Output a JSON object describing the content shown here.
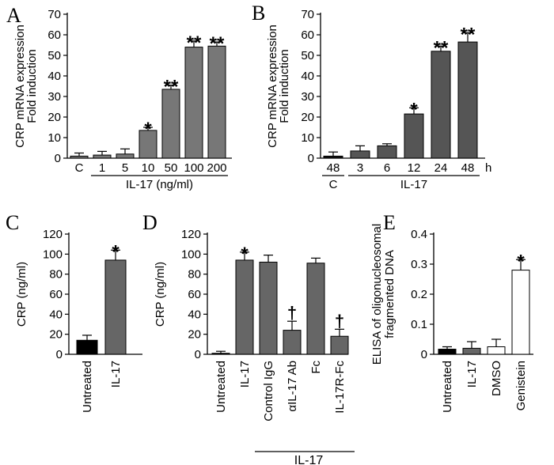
{
  "chart_data": [
    {
      "id": "A",
      "type": "bar",
      "panel_label": "A",
      "ylabel_lines": [
        "CRP mRNA expression",
        "Fold induction"
      ],
      "ylim": [
        0,
        70
      ],
      "yticks": [
        0,
        10,
        20,
        30,
        40,
        50,
        60,
        70
      ],
      "categories": [
        "C",
        "1",
        "5",
        "10",
        "50",
        "100",
        "200"
      ],
      "values": [
        1,
        1.5,
        2,
        13.5,
        33.5,
        54,
        54.5
      ],
      "errors": [
        1.5,
        1.8,
        2.5,
        1.5,
        2,
        3,
        2
      ],
      "colors": [
        "#777777",
        "#777777",
        "#777777",
        "#777777",
        "#777777",
        "#777777",
        "#777777"
      ],
      "marks": [
        "",
        "",
        "",
        "*",
        "**",
        "**",
        "**"
      ],
      "group_label": "IL-17 (ng/ml)",
      "group_span": [
        1,
        6
      ],
      "unit": ""
    },
    {
      "id": "B",
      "type": "bar",
      "panel_label": "B",
      "ylabel_lines": [
        "CRP mRNA expression",
        "Fold induction"
      ],
      "ylim": [
        0,
        70
      ],
      "yticks": [
        0,
        10,
        20,
        30,
        40,
        50,
        60,
        70
      ],
      "categories": [
        "48",
        "3",
        "6",
        "12",
        "24",
        "48"
      ],
      "values": [
        1,
        3.5,
        6,
        21.5,
        52,
        56.5
      ],
      "errors": [
        2,
        2.5,
        1,
        3,
        2.5,
        4.5
      ],
      "colors": [
        "#111111",
        "#555555",
        "#555555",
        "#555555",
        "#555555",
        "#555555"
      ],
      "marks": [
        "",
        "",
        "",
        "*",
        "**",
        "**"
      ],
      "group_label": "IL-17",
      "group_span": [
        1,
        5
      ],
      "first_sublabel": "C",
      "unit": "h"
    },
    {
      "id": "C",
      "type": "bar",
      "panel_label": "C",
      "ylabel_lines": [
        "CRP (ng/ml)"
      ],
      "ylim": [
        0,
        120
      ],
      "yticks": [
        0,
        20,
        40,
        60,
        80,
        100,
        120
      ],
      "categories": [
        "Untreated",
        "IL-17"
      ],
      "values": [
        14,
        94
      ],
      "errors": [
        5,
        10
      ],
      "colors": [
        "#000000",
        "#666666"
      ],
      "marks": [
        "",
        "*"
      ]
    },
    {
      "id": "D",
      "type": "bar",
      "panel_label": "D",
      "ylabel_lines": [
        "CRP (ng/ml)"
      ],
      "ylim": [
        0,
        120
      ],
      "yticks": [
        0,
        20,
        40,
        60,
        80,
        100,
        120
      ],
      "categories": [
        "Untreated",
        "IL-17",
        "Control IgG",
        "αIL-17 Ab",
        "Fc",
        "IL-17R-Fc"
      ],
      "values": [
        1,
        94,
        92,
        24,
        91,
        18
      ],
      "errors": [
        2,
        8,
        7,
        9,
        5,
        7
      ],
      "colors": [
        "#000000",
        "#666666",
        "#666666",
        "#666666",
        "#666666",
        "#666666"
      ],
      "marks": [
        "",
        "*",
        "",
        "†",
        "",
        "†"
      ],
      "group_label": "IL-17",
      "group_span": [
        2,
        5
      ]
    },
    {
      "id": "E",
      "type": "bar",
      "panel_label": "E",
      "ylabel_lines": [
        "ELISA of oligonucleosomal",
        "fragmented DNA"
      ],
      "ylim": [
        0,
        0.4
      ],
      "yticks": [
        0,
        0.1,
        0.2,
        0.3,
        0.4
      ],
      "categories": [
        "Untreated",
        "IL-17",
        "DMSO",
        "Genistein"
      ],
      "values": [
        0.017,
        0.02,
        0.025,
        0.28
      ],
      "errors": [
        0.008,
        0.022,
        0.025,
        0.035
      ],
      "colors": [
        "#000000",
        "#666666",
        "#ffffff",
        "#ffffff"
      ],
      "marks": [
        "",
        "",
        "",
        "*"
      ]
    }
  ]
}
